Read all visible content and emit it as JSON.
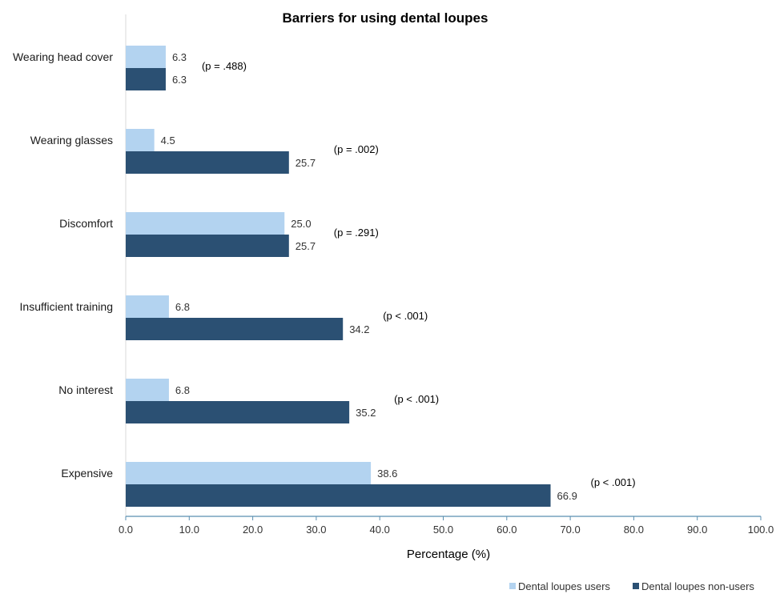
{
  "chart_data": {
    "type": "bar",
    "orientation": "horizontal",
    "title": "Barriers for using dental loupes",
    "xlabel": "Percentage (%)",
    "ylabel": "",
    "xlim": [
      0,
      100
    ],
    "x_ticks": [
      "0.0",
      "10.0",
      "20.0",
      "30.0",
      "40.0",
      "50.0",
      "60.0",
      "70.0",
      "80.0",
      "90.0",
      "100.0"
    ],
    "categories": [
      "Wearing head cover",
      "Wearing glasses",
      "Discomfort",
      "Insufficient training",
      "No interest",
      "Expensive"
    ],
    "series": [
      {
        "name": "Dental loupes users",
        "color": "#b3d3f0",
        "values": [
          6.3,
          4.5,
          25.0,
          6.8,
          6.8,
          38.6
        ],
        "labels": [
          "6.3",
          "4.5",
          "25.0",
          "6.8",
          "6.8",
          "38.6"
        ]
      },
      {
        "name": "Dental loupes non-users",
        "color": "#2b5073",
        "values": [
          6.3,
          25.7,
          25.7,
          34.2,
          35.2,
          66.9
        ],
        "labels": [
          "6.3",
          "25.7",
          "25.7",
          "34.2",
          "35.2",
          "66.9"
        ]
      }
    ],
    "annotations": [
      "(p = .488)",
      "(p = .002)",
      "(p = .291)",
      "(p < .001)",
      "(p < .001)",
      "(p < .001)"
    ],
    "grid": false,
    "legend_position": "bottom-right"
  }
}
